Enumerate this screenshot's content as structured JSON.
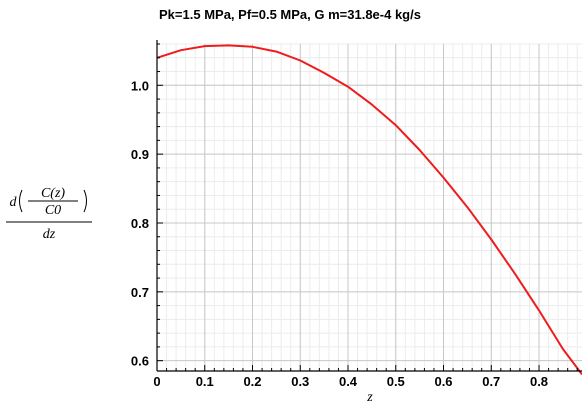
{
  "chart_data": {
    "type": "line",
    "title": "Pk=1.5 MPa, Pf=0.5 MPa, G m=31.8e-4 kg/s",
    "xlabel": "z",
    "ylabel": {
      "prefix": "d",
      "numerator": "C(z)",
      "denominator": "C0",
      "bottom": "dz"
    },
    "xlim": [
      0,
      0.89
    ],
    "ylim": [
      0.585,
      1.06
    ],
    "xticks": [
      0,
      0.1,
      0.2,
      0.3,
      0.4,
      0.5,
      0.6,
      0.7,
      0.8
    ],
    "xtick_labels": [
      "0",
      "0.1",
      "0.2",
      "0.3",
      "0.4",
      "0.5",
      "0.6",
      "0.7",
      "0.8"
    ],
    "yticks": [
      0.6,
      0.7,
      0.8,
      0.9,
      1.0
    ],
    "ytick_labels": [
      "0.6",
      "0.7",
      "0.8",
      "0.9",
      "1.0"
    ],
    "grid": true,
    "series": [
      {
        "color": "#ee1c1c",
        "x": [
          0,
          0.05,
          0.1,
          0.15,
          0.2,
          0.25,
          0.3,
          0.35,
          0.4,
          0.45,
          0.5,
          0.55,
          0.6,
          0.65,
          0.7,
          0.75,
          0.8,
          0.85,
          0.89
        ],
        "y": [
          1.04,
          1.051,
          1.057,
          1.058,
          1.056,
          1.049,
          1.036,
          1.018,
          0.998,
          0.972,
          0.942,
          0.906,
          0.866,
          0.823,
          0.776,
          0.726,
          0.673,
          0.617,
          0.58
        ]
      }
    ]
  }
}
